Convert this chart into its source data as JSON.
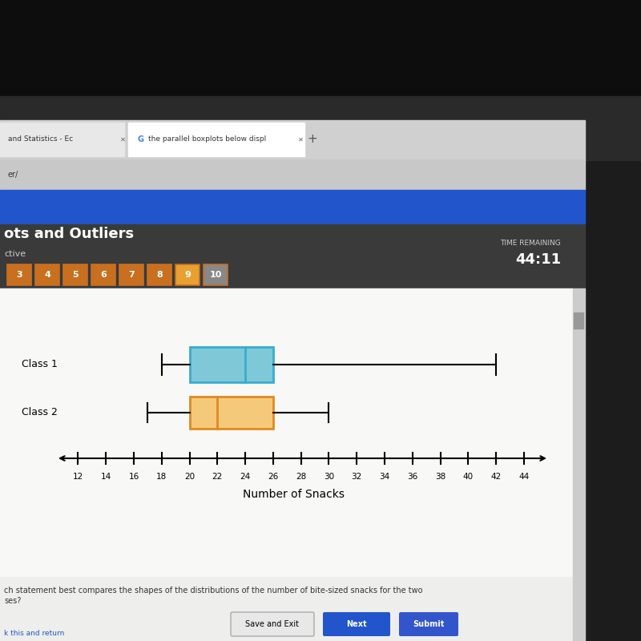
{
  "class1": {
    "min": 18,
    "q1": 20,
    "median": 24,
    "q3": 26,
    "max": 42,
    "label": "Class 1",
    "color": "#7EC8D8",
    "edge_color": "#3AACCF"
  },
  "class2": {
    "min": 17,
    "q1": 20,
    "median": 22,
    "q3": 26,
    "max": 30,
    "label": "Class 2",
    "color": "#F5C97A",
    "edge_color": "#E08A20"
  },
  "xticks": [
    12,
    14,
    16,
    18,
    20,
    22,
    24,
    26,
    28,
    30,
    32,
    34,
    36,
    38,
    40,
    42,
    44
  ],
  "xlabel": "Number of Snacks",
  "xmin": 11,
  "xmax": 45.5,
  "content_bg": "#f5f4f2",
  "dark_header_color": "#3a3a3a",
  "blue_bar_color": "#2255cc",
  "browser_bg": "#d8d8d8",
  "tab_text1": "and Statistics - Ec",
  "tab_text2": "the parallel boxplots below displ",
  "page_title": "ots and Outliers",
  "timer_label": "TIME REMAINING",
  "timer_value": "44:11",
  "status_label": "ctive",
  "question_text1": "ch statement best compares the shapes of the distributions of the number of bite-sized snacks for the two",
  "question_text2": "ses?",
  "nav_numbers": [
    "3",
    "4",
    "5",
    "6",
    "7",
    "8",
    "9",
    "10"
  ],
  "active_nav": "9"
}
